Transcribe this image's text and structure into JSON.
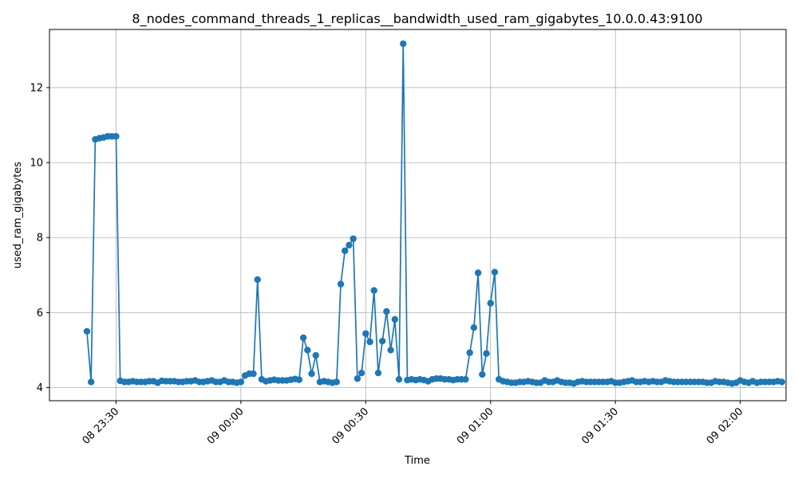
{
  "chart_data": {
    "type": "line",
    "title": "8_nodes_command_threads_1_replicas__bandwidth_used_ram_gigabytes_10.0.0.43:9100",
    "xlabel": "Time",
    "ylabel": "used_ram_gigabytes",
    "grid": true,
    "ylim": [
      3.65,
      13.55
    ],
    "yticks": [
      4,
      6,
      8,
      10,
      12
    ],
    "xlim": [
      "08 23:14",
      "09 02:11"
    ],
    "xticks": [
      {
        "value": "08 23:30",
        "label": "08 23:30"
      },
      {
        "value": "09 00:00",
        "label": "09 00:00"
      },
      {
        "value": "09 00:30",
        "label": "09 00:30"
      },
      {
        "value": "09 01:00",
        "label": "09 01:00"
      },
      {
        "value": "09 01:30",
        "label": "09 01:30"
      },
      {
        "value": "09 02:00",
        "label": "09 02:00"
      }
    ],
    "color": "#1f77b4",
    "series": [
      {
        "name": "",
        "x_start": "08 23:23",
        "x_step_minutes": 1,
        "values": [
          5.5,
          4.15,
          10.62,
          10.65,
          10.67,
          10.7,
          10.7,
          10.7,
          4.18,
          4.15,
          4.15,
          4.17,
          4.15,
          4.15,
          4.15,
          4.17,
          4.17,
          4.13,
          4.18,
          4.17,
          4.17,
          4.17,
          4.15,
          4.15,
          4.17,
          4.17,
          4.19,
          4.15,
          4.15,
          4.17,
          4.19,
          4.15,
          4.15,
          4.19,
          4.15,
          4.15,
          4.13,
          4.15,
          4.32,
          4.37,
          4.37,
          6.88,
          4.22,
          4.17,
          4.19,
          4.21,
          4.19,
          4.19,
          4.19,
          4.21,
          4.23,
          4.21,
          5.33,
          5.0,
          4.37,
          4.86,
          4.15,
          4.17,
          4.15,
          4.13,
          4.15,
          6.76,
          7.65,
          7.8,
          7.97,
          4.24,
          4.39,
          5.44,
          5.22,
          6.59,
          4.39,
          5.24,
          6.03,
          5.0,
          5.82,
          4.22,
          13.17,
          4.2,
          4.22,
          4.2,
          4.22,
          4.2,
          4.17,
          4.22,
          4.24,
          4.24,
          4.22,
          4.22,
          4.2,
          4.22,
          4.22,
          4.22,
          4.93,
          5.6,
          7.06,
          4.35,
          4.91,
          6.25,
          7.08,
          4.22,
          4.17,
          4.15,
          4.13,
          4.13,
          4.15,
          4.15,
          4.17,
          4.15,
          4.13,
          4.13,
          4.19,
          4.15,
          4.15,
          4.19,
          4.15,
          4.13,
          4.13,
          4.11,
          4.15,
          4.17,
          4.15,
          4.15,
          4.15,
          4.15,
          4.15,
          4.15,
          4.17,
          4.13,
          4.13,
          4.15,
          4.17,
          4.19,
          4.15,
          4.15,
          4.17,
          4.15,
          4.17,
          4.15,
          4.15,
          4.19,
          4.17,
          4.15,
          4.15,
          4.15,
          4.15,
          4.15,
          4.15,
          4.15,
          4.15,
          4.13,
          4.13,
          4.17,
          4.15,
          4.15,
          4.13,
          4.11,
          4.13,
          4.19,
          4.15,
          4.13,
          4.17,
          4.13,
          4.15,
          4.15,
          4.15,
          4.15,
          4.17,
          4.15
        ]
      }
    ]
  }
}
